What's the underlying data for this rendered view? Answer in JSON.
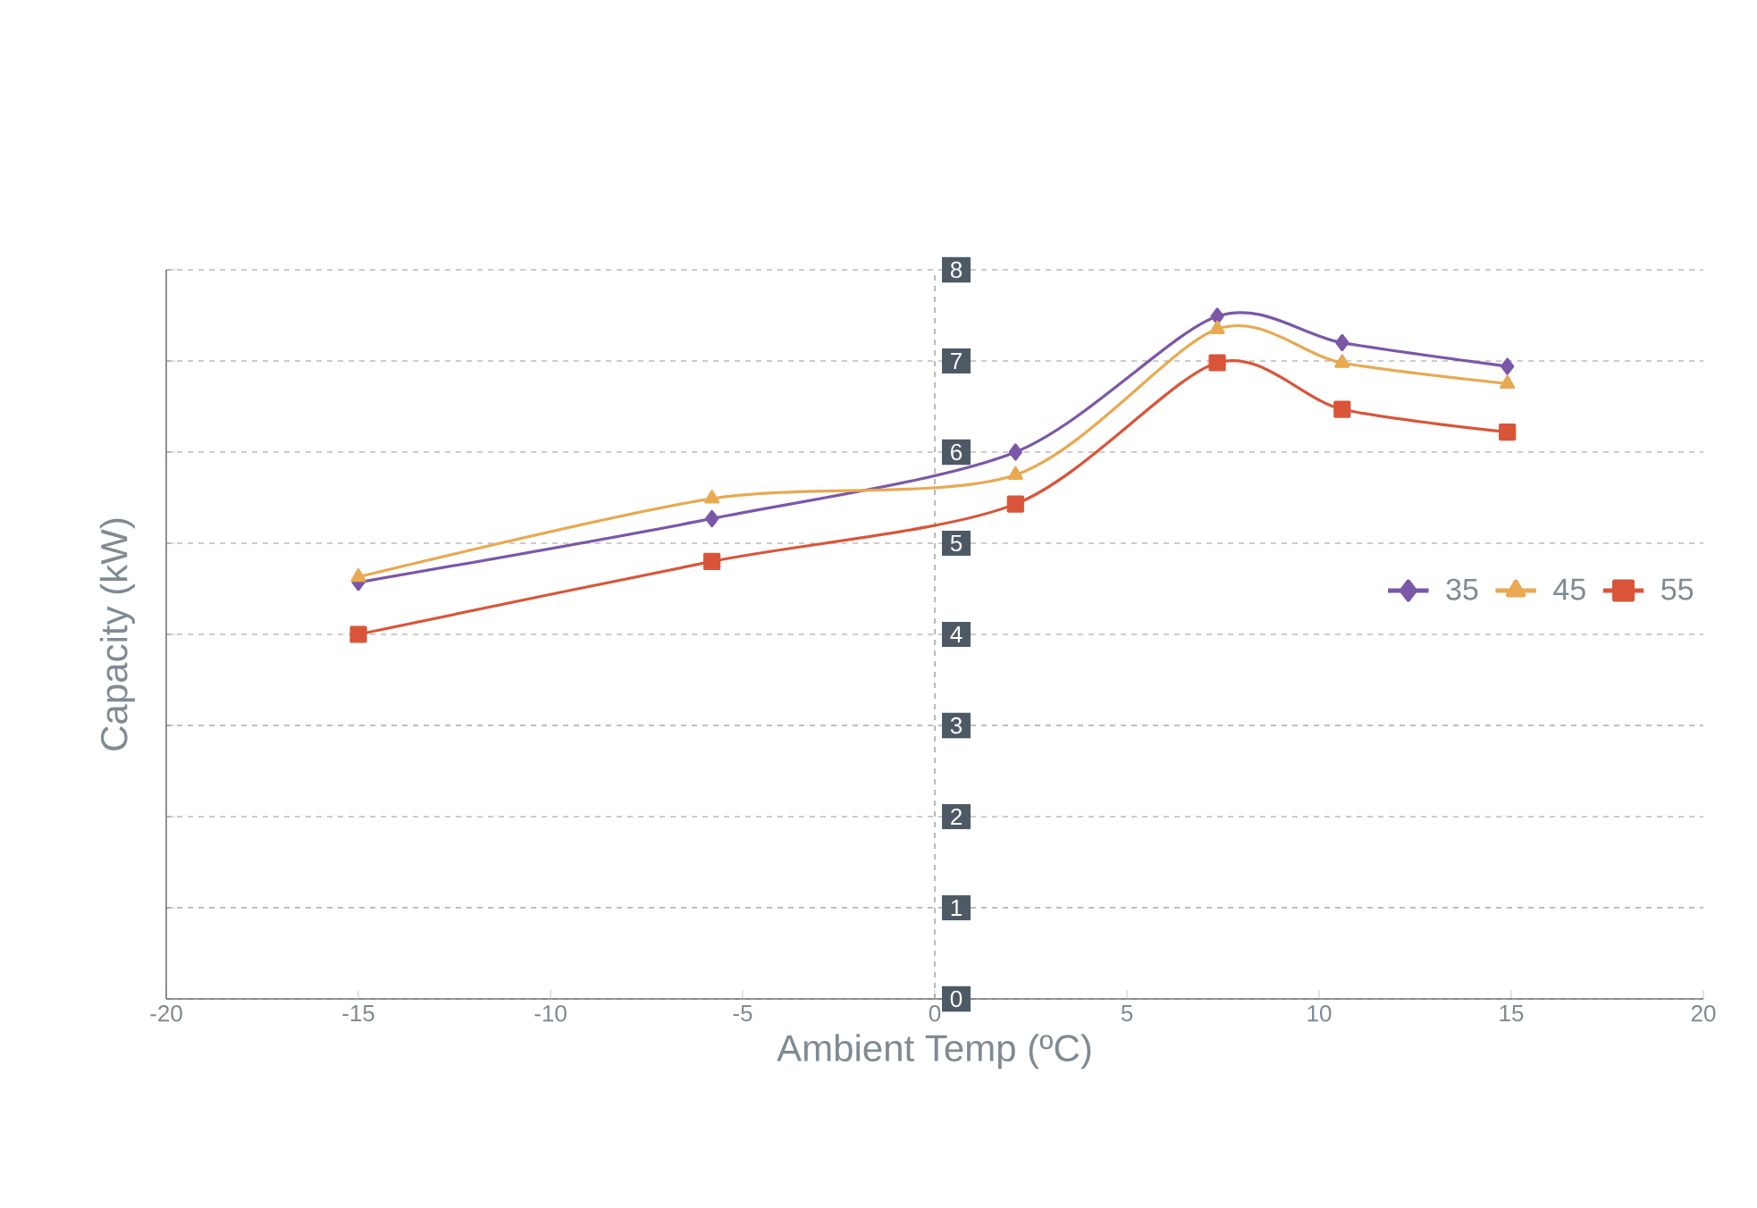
{
  "chart_data": {
    "type": "line",
    "xlabel": "Ambient Temp (ºC)",
    "ylabel": "Capacity (kW)",
    "x": [
      -15,
      -5.8,
      2.1,
      7.35,
      10.6,
      14.9
    ],
    "series": [
      {
        "name": "35",
        "color": "#7b57a8",
        "marker": "diamond",
        "values": [
          4.57,
          5.27,
          6.0,
          7.49,
          7.2,
          6.94
        ]
      },
      {
        "name": "45",
        "color": "#e8a951",
        "marker": "triangle",
        "values": [
          4.63,
          5.49,
          5.75,
          7.35,
          6.98,
          6.75
        ]
      },
      {
        "name": "55",
        "color": "#d9553a",
        "marker": "square",
        "values": [
          4.0,
          4.8,
          5.43,
          6.98,
          6.47,
          6.22
        ]
      }
    ],
    "xlim": [
      -20,
      20
    ],
    "xticks": [
      -20,
      -15,
      -10,
      -5,
      0,
      5,
      10,
      15,
      20
    ],
    "ylim": [
      0,
      8
    ],
    "yticks": [
      0,
      1,
      2,
      3,
      4,
      5,
      6,
      7,
      8
    ],
    "grid": "y",
    "legend": "right",
    "line_style": "solid",
    "ref_lines": [
      {
        "axis": "x",
        "value": 0,
        "line_style": "dashed"
      }
    ]
  }
}
